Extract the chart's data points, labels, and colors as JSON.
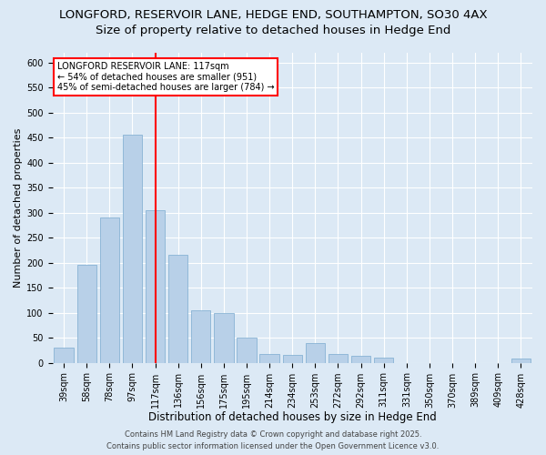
{
  "title1": "LONGFORD, RESERVOIR LANE, HEDGE END, SOUTHAMPTON, SO30 4AX",
  "title2": "Size of property relative to detached houses in Hedge End",
  "xlabel": "Distribution of detached houses by size in Hedge End",
  "ylabel": "Number of detached properties",
  "categories": [
    "39sqm",
    "58sqm",
    "78sqm",
    "97sqm",
    "117sqm",
    "136sqm",
    "156sqm",
    "175sqm",
    "195sqm",
    "214sqm",
    "234sqm",
    "253sqm",
    "272sqm",
    "292sqm",
    "311sqm",
    "331sqm",
    "350sqm",
    "370sqm",
    "389sqm",
    "409sqm",
    "428sqm"
  ],
  "values": [
    30,
    195,
    290,
    455,
    305,
    215,
    105,
    100,
    50,
    18,
    15,
    40,
    18,
    14,
    10,
    0,
    0,
    0,
    0,
    0,
    8
  ],
  "bar_color": "#b8d0e8",
  "bar_edge_color": "#7aaacf",
  "ref_line_x": 4,
  "annotation_text": "LONGFORD RESERVOIR LANE: 117sqm\n← 54% of detached houses are smaller (951)\n45% of semi-detached houses are larger (784) →",
  "annotation_box_color": "white",
  "annotation_box_edge": "red",
  "ref_line_color": "red",
  "background_color": "#dce9f5",
  "plot_bg_color": "#dce9f5",
  "ylim": [
    0,
    620
  ],
  "yticks": [
    0,
    50,
    100,
    150,
    200,
    250,
    300,
    350,
    400,
    450,
    500,
    550,
    600
  ],
  "footer_line1": "Contains HM Land Registry data © Crown copyright and database right 2025.",
  "footer_line2": "Contains public sector information licensed under the Open Government Licence v3.0.",
  "title1_fontsize": 9.5,
  "title2_fontsize": 9.5,
  "xlabel_fontsize": 8.5,
  "ylabel_fontsize": 8,
  "tick_fontsize": 7,
  "annotation_fontsize": 7,
  "footer_fontsize": 6
}
